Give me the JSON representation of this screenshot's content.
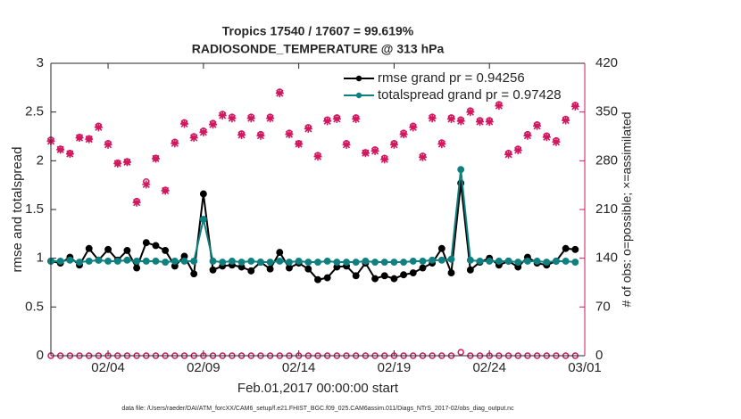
{
  "chart_data": {
    "type": "line",
    "title": "Tropics 17540 / 17607 = 99.619%",
    "subtitle": "RADIOSONDE_TEMPERATURE @ 313 hPa",
    "x_label": "Feb.01,2017 00:00:00 start",
    "y_label": "rmse and totalspread",
    "y2_label": "# of obs: o=possible; ×=assimilated",
    "footnote": "data file: /Users/raeder/DAI/ATM_forcXX/CAM6_setup/f.e21.FHIST_BGC.f09_025.CAM6assim.011/Diags_NTrS_2017-02/obs_diag_output.nc",
    "x": [
      0,
      0.5,
      1,
      1.5,
      2,
      2.5,
      3,
      3.5,
      4,
      4.5,
      5,
      5.5,
      6,
      6.5,
      7,
      7.5,
      8,
      8.5,
      9,
      9.5,
      10,
      10.5,
      11,
      11.5,
      12,
      12.5,
      13,
      13.5,
      14,
      14.5,
      15,
      15.5,
      16,
      16.5,
      17,
      17.5,
      18,
      18.5,
      19,
      19.5,
      20,
      20.5,
      21,
      21.5,
      22,
      22.5,
      23,
      23.5,
      24,
      24.5,
      25,
      25.5,
      26,
      26.5,
      27,
      27.5
    ],
    "xlim": [
      0,
      28
    ],
    "xticks": [
      {
        "value": 3,
        "label": "02/04"
      },
      {
        "value": 8,
        "label": "02/09"
      },
      {
        "value": 13,
        "label": "02/14"
      },
      {
        "value": 18,
        "label": "02/19"
      },
      {
        "value": 23,
        "label": "02/24"
      },
      {
        "value": 28,
        "label": "03/01"
      }
    ],
    "ylim": [
      0,
      3
    ],
    "yticks": [
      0,
      0.5,
      1,
      1.5,
      2,
      2.5,
      3
    ],
    "y2lim": [
      0,
      420
    ],
    "y2ticks": [
      0,
      70,
      140,
      210,
      280,
      350,
      420
    ],
    "y2_color": "#d1175f",
    "legend": "upper right",
    "series": [
      {
        "name": "rmse grand pr = 0.94256",
        "color": "#000000",
        "values": [
          0.97,
          0.95,
          1.01,
          0.93,
          1.1,
          0.98,
          1.09,
          0.98,
          1.08,
          0.9,
          1.16,
          1.13,
          1.08,
          0.92,
          1.02,
          0.84,
          1.66,
          0.88,
          0.92,
          0.93,
          0.91,
          0.87,
          0.96,
          0.89,
          1.06,
          0.9,
          0.95,
          0.89,
          0.78,
          0.8,
          0.91,
          0.92,
          0.82,
          0.95,
          0.79,
          0.82,
          0.79,
          0.83,
          0.85,
          0.9,
          0.95,
          1.1,
          0.85,
          1.77,
          0.88,
          0.96,
          1.0,
          0.93,
          0.97,
          0.91,
          1.01,
          0.95,
          0.93,
          0.97,
          1.1,
          1.09
        ]
      },
      {
        "name": "totalspread grand pr = 0.97428",
        "color": "#0f8080",
        "values": [
          0.97,
          0.97,
          0.98,
          0.96,
          0.97,
          0.98,
          0.97,
          0.97,
          0.98,
          0.97,
          0.97,
          0.97,
          0.96,
          0.97,
          0.97,
          0.97,
          1.4,
          0.97,
          0.96,
          0.97,
          0.96,
          0.97,
          0.96,
          0.96,
          0.97,
          0.96,
          0.97,
          0.96,
          0.96,
          0.97,
          0.96,
          0.96,
          0.96,
          0.97,
          0.96,
          0.96,
          0.96,
          0.96,
          0.97,
          0.97,
          0.98,
          0.98,
          0.99,
          1.91,
          0.98,
          0.97,
          0.97,
          0.97,
          0.97,
          0.96,
          0.97,
          0.97,
          0.96,
          0.97,
          0.97,
          0.96
        ]
      },
      {
        "axis": "y2",
        "marker": "o",
        "color": "#d1175f",
        "values": [
          310,
          297,
          291,
          314,
          312,
          330,
          305,
          277,
          279,
          222,
          250,
          284,
          238,
          307,
          335,
          315,
          323,
          334,
          347,
          343,
          319,
          343,
          318,
          343,
          379,
          320,
          305,
          328,
          288,
          339,
          342,
          305,
          342,
          292,
          296,
          284,
          305,
          320,
          330,
          287,
          343,
          306,
          342,
          339,
          352,
          338,
          338,
          361,
          291,
          297,
          318,
          332,
          316,
          309,
          340,
          360
        ]
      },
      {
        "axis": "y2",
        "marker": "x",
        "color": "#d1175f",
        "values": [
          308,
          296,
          290,
          313,
          311,
          328,
          303,
          276,
          278,
          220,
          246,
          283,
          237,
          305,
          333,
          313,
          321,
          332,
          345,
          341,
          317,
          341,
          316,
          341,
          377,
          318,
          304,
          326,
          286,
          337,
          340,
          303,
          340,
          291,
          294,
          282,
          303,
          318,
          328,
          285,
          341,
          304,
          340,
          337,
          350,
          336,
          336,
          359,
          289,
          295,
          316,
          330,
          314,
          307,
          338,
          358
        ]
      },
      {
        "axis": "y2",
        "marker": "o",
        "color": "#d1175f",
        "values": [
          0,
          0,
          0,
          0,
          0,
          0,
          0,
          0,
          0,
          0,
          0,
          0,
          0,
          0,
          0,
          0,
          0,
          0,
          0,
          0,
          0,
          0,
          0,
          0,
          0,
          0,
          0,
          0,
          0,
          0,
          0,
          0,
          0,
          0,
          0,
          0,
          0,
          0,
          0,
          0,
          0,
          0,
          0,
          5,
          0,
          0,
          0,
          0,
          0,
          0,
          0,
          0,
          0,
          0,
          0,
          0
        ]
      }
    ]
  }
}
